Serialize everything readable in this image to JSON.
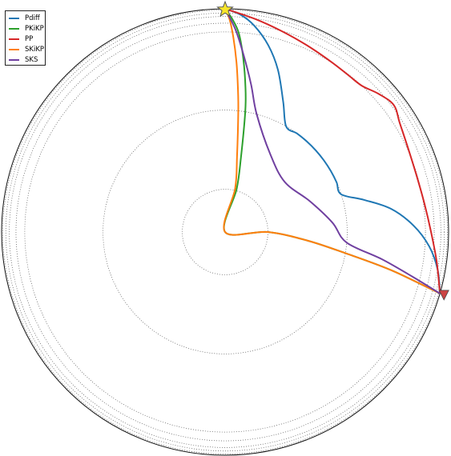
{
  "chart_data": {
    "type": "line",
    "title": "",
    "xlabel": "",
    "ylabel": "",
    "grid": false,
    "legend_position": "top-left",
    "projection": "polar (ray path plot, distance in degrees, depth in km)",
    "earth_radius_km": 6371,
    "discontinuity_radii_km": [
      6371,
      6336,
      6251,
      6151,
      5961,
      5711,
      3480,
      1220
    ],
    "source": {
      "distance_deg": 0,
      "depth_km": 0,
      "marker": "star",
      "color": "#f7e52b"
    },
    "receiver": {
      "distance_deg": 106,
      "depth_km": 0,
      "marker": "triangle",
      "color": "#cc4444"
    },
    "series": [
      {
        "name": "Pdiff",
        "color": "#1f77b4",
        "points": [
          [
            0,
            0
          ],
          [
            4,
            150
          ],
          [
            8,
            420
          ],
          [
            13,
            900
          ],
          [
            18,
            1500
          ],
          [
            24,
            2300
          ],
          [
            30,
            2891
          ],
          [
            36,
            2891
          ],
          [
            42,
            2891
          ],
          [
            48,
            2891
          ],
          [
            54,
            2891
          ],
          [
            60,
            2891
          ],
          [
            66,
            2891
          ],
          [
            72,
            2891
          ],
          [
            77,
            2300
          ],
          [
            82,
            1600
          ],
          [
            88,
            1000
          ],
          [
            94,
            540
          ],
          [
            100,
            220
          ],
          [
            106,
            0
          ]
        ]
      },
      {
        "name": "PKiKP",
        "color": "#2ca02c",
        "points": [
          [
            0,
            0
          ],
          [
            2,
            300
          ],
          [
            4,
            700
          ],
          [
            6,
            1400
          ],
          [
            8,
            2200
          ],
          [
            9.5,
            2891
          ],
          [
            12,
            4200
          ],
          [
            15,
            5100
          ],
          [
            54,
            6371
          ],
          [
            90,
            5150
          ],
          [
            96,
            4000
          ],
          [
            100,
            2891
          ],
          [
            103,
            1500
          ],
          [
            106,
            0
          ]
        ]
      },
      {
        "name": "PP",
        "color": "#d62728",
        "points": [
          [
            0,
            0
          ],
          [
            8,
            230
          ],
          [
            16,
            420
          ],
          [
            24,
            560
          ],
          [
            32,
            650
          ],
          [
            38,
            680
          ],
          [
            43,
            660
          ],
          [
            48,
            480
          ],
          [
            53,
            350
          ],
          [
            58,
            500
          ],
          [
            66,
            640
          ],
          [
            74,
            680
          ],
          [
            82,
            630
          ],
          [
            90,
            500
          ],
          [
            98,
            280
          ],
          [
            106,
            0
          ]
        ]
      },
      {
        "name": "SKiKP",
        "color": "#ff7f0e",
        "points": [
          [
            0,
            0
          ],
          [
            1.2,
            300
          ],
          [
            2.4,
            800
          ],
          [
            3.8,
            1500
          ],
          [
            5,
            2200
          ],
          [
            6.2,
            2891
          ],
          [
            9,
            4200
          ],
          [
            13,
            5100
          ],
          [
            54,
            6371
          ],
          [
            90,
            5150
          ],
          [
            96,
            4000
          ],
          [
            100,
            2891
          ],
          [
            103,
            1500
          ],
          [
            106,
            0
          ]
        ]
      },
      {
        "name": "SKS",
        "color": "#7040a0",
        "points": [
          [
            0,
            0
          ],
          [
            3,
            600
          ],
          [
            6,
            1300
          ],
          [
            10,
            2100
          ],
          [
            15,
            2891
          ],
          [
            30,
            3800
          ],
          [
            50,
            4150
          ],
          [
            70,
            3800
          ],
          [
            85,
            3300
          ],
          [
            95,
            2891
          ],
          [
            100,
            1800
          ],
          [
            104,
            700
          ],
          [
            106,
            0
          ]
        ]
      }
    ]
  }
}
